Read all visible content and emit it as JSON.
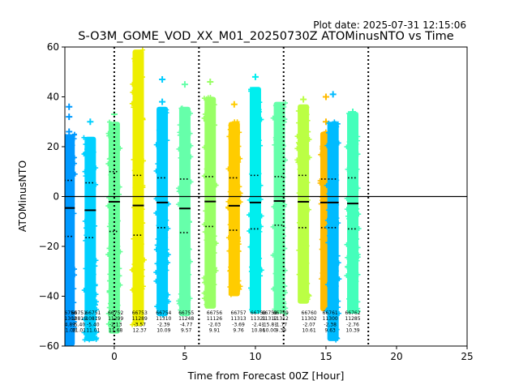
{
  "plot_date": "Plot date: 2025-07-31 12:15:06",
  "chart_data": {
    "type": "scatter",
    "title": "S-O3M_GOME_VOD_XX_M01_20250730Z ATOMinusNTO vs Time",
    "xlabel": "Time from Forecast 00Z [Hour]",
    "ylabel": "ATOMinusNTO",
    "xlim": [
      -3.5,
      25
    ],
    "ylim": [
      -60,
      60
    ],
    "xticks": [
      0,
      5,
      10,
      15,
      20,
      25
    ],
    "yticks": [
      -60,
      -40,
      -20,
      0,
      20,
      40,
      60
    ],
    "grid": false,
    "vlines_dotted": [
      0,
      6,
      12,
      18
    ],
    "hline_zero": 0,
    "series": [
      {
        "x": -3.2,
        "color": "#0099ff",
        "low": -60,
        "high": 25,
        "mean": -4.6,
        "upper": 6.5,
        "lower": -16,
        "outliers": [
          36,
          32,
          26
        ]
      },
      {
        "x": -1.7,
        "color": "#00d0ff",
        "low": -58,
        "high": 24,
        "mean": -5.5,
        "upper": 5.5,
        "lower": -16.5,
        "outliers": [
          30
        ]
      },
      {
        "x": 0.0,
        "color": "#66ff99",
        "low": -55,
        "high": 30,
        "mean": -2.1,
        "upper": 10,
        "lower": -14,
        "outliers": [
          33
        ]
      },
      {
        "x": 1.7,
        "color": "#eeee00",
        "low": -52,
        "high": 59,
        "mean": -3.6,
        "upper": 8.5,
        "lower": -15.5,
        "outliers": [
          46,
          41
        ]
      },
      {
        "x": 3.4,
        "color": "#00ccff",
        "low": -48,
        "high": 36,
        "mean": -2.4,
        "upper": 7.5,
        "lower": -12.5,
        "outliers": [
          47,
          38
        ]
      },
      {
        "x": 5.0,
        "color": "#66ffaa",
        "low": -48,
        "high": 36,
        "mean": -4.8,
        "upper": 7,
        "lower": -14.5,
        "outliers": [
          45
        ]
      },
      {
        "x": 6.8,
        "color": "#99ff66",
        "low": -45,
        "high": 40,
        "mean": -2.0,
        "upper": 8,
        "lower": -12,
        "outliers": [
          46
        ]
      },
      {
        "x": 8.5,
        "color": "#ffcc00",
        "low": -40,
        "high": 30,
        "mean": -3.7,
        "upper": 7.5,
        "lower": -13.5,
        "outliers": [
          37
        ]
      },
      {
        "x": 10.0,
        "color": "#00eeee",
        "low": -47,
        "high": 44,
        "mean": -2.4,
        "upper": 8.5,
        "lower": -13,
        "outliers": [
          48
        ]
      },
      {
        "x": 11.7,
        "color": "#66ffaa",
        "low": -47,
        "high": 38,
        "mean": -1.8,
        "upper": 8,
        "lower": -11.5,
        "outliers": [
          34
        ]
      },
      {
        "x": 13.4,
        "color": "#bbff44",
        "low": -43,
        "high": 37,
        "mean": -2.1,
        "upper": 8.5,
        "lower": -12.5,
        "outliers": [
          39
        ]
      },
      {
        "x": 15.0,
        "color": "#ffbb00",
        "low": -46,
        "high": 26,
        "mean": -2.4,
        "upper": 7,
        "lower": -12.5,
        "outliers": [
          40,
          30
        ]
      },
      {
        "x": 15.5,
        "color": "#00bbff",
        "low": -58,
        "high": 30,
        "mean": -2.4,
        "upper": 7,
        "lower": -12.5,
        "outliers": [
          41
        ]
      },
      {
        "x": 16.9,
        "color": "#44ffbb",
        "low": -47,
        "high": 34,
        "mean": -2.8,
        "upper": 7.5,
        "lower": -13,
        "outliers": [
          34
        ]
      }
    ],
    "annotations": [
      {
        "x": -4.7,
        "lines": [
          "66749",
          "11302",
          "-2.56",
          "11.45"
        ]
      },
      {
        "x": -3.2,
        "lines": [
          "66750",
          "11302",
          "-4.89",
          "11.08"
        ]
      },
      {
        "x": -2.5,
        "lines": [
          "66751",
          "10819",
          "-5.40",
          "11.01"
        ]
      },
      {
        "x": -1.5,
        "lines": [
          "66751",
          "10819",
          "-5.40",
          "11.01"
        ]
      },
      {
        "x": 0.1,
        "lines": [
          "66752",
          "11299",
          "-2.13",
          "11.68"
        ]
      },
      {
        "x": 1.8,
        "lines": [
          "66753",
          "11289",
          "-3.57",
          "12.37"
        ]
      },
      {
        "x": 3.5,
        "lines": [
          "66754",
          "11310",
          "-2.39",
          "10.09"
        ]
      },
      {
        "x": 5.1,
        "lines": [
          "66755",
          "11248",
          "-4.77",
          "9.57"
        ]
      },
      {
        "x": 7.1,
        "lines": [
          "66756",
          "11126",
          "-2.03",
          "9.91"
        ]
      },
      {
        "x": 8.8,
        "lines": [
          "66757",
          "11313",
          "-3.69",
          "9.76"
        ]
      },
      {
        "x": 10.2,
        "lines": [
          "66758",
          "11321",
          "-2.41",
          "10.86"
        ]
      },
      {
        "x": 11.0,
        "lines": [
          "66758",
          "11312",
          "-15.81",
          "10.00"
        ]
      },
      {
        "x": 11.8,
        "lines": [
          "66759",
          "11312",
          "-1.77",
          "9.39"
        ]
      },
      {
        "x": 13.8,
        "lines": [
          "66760",
          "11302",
          "-2.07",
          "10.61"
        ]
      },
      {
        "x": 15.3,
        "lines": [
          "66761",
          "11300",
          "-2.38",
          "9.63"
        ]
      },
      {
        "x": 16.9,
        "lines": [
          "66762",
          "11285",
          "-2.76",
          "10.39"
        ]
      }
    ]
  }
}
